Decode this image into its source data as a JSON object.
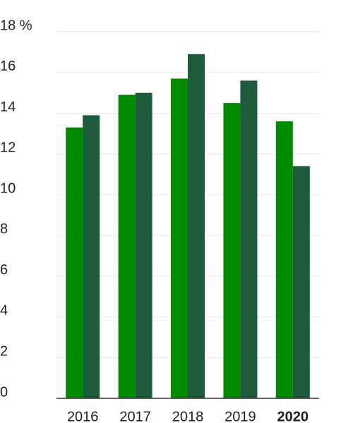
{
  "chart_data": {
    "type": "bar",
    "categories": [
      "2016",
      "2017",
      "2018",
      "2019",
      "2020"
    ],
    "series": [
      {
        "color": "#008a00",
        "values": [
          13.3,
          14.9,
          15.7,
          14.5,
          13.6
        ]
      },
      {
        "color": "#1e5a3c",
        "values": [
          13.9,
          15.0,
          16.9,
          15.6,
          11.4
        ]
      }
    ],
    "ylim": [
      0,
      18
    ],
    "yticks": [
      0,
      2,
      4,
      6,
      8,
      10,
      12,
      14,
      16,
      {
        "value": 18,
        "label": "18 %"
      }
    ],
    "grid": true
  }
}
